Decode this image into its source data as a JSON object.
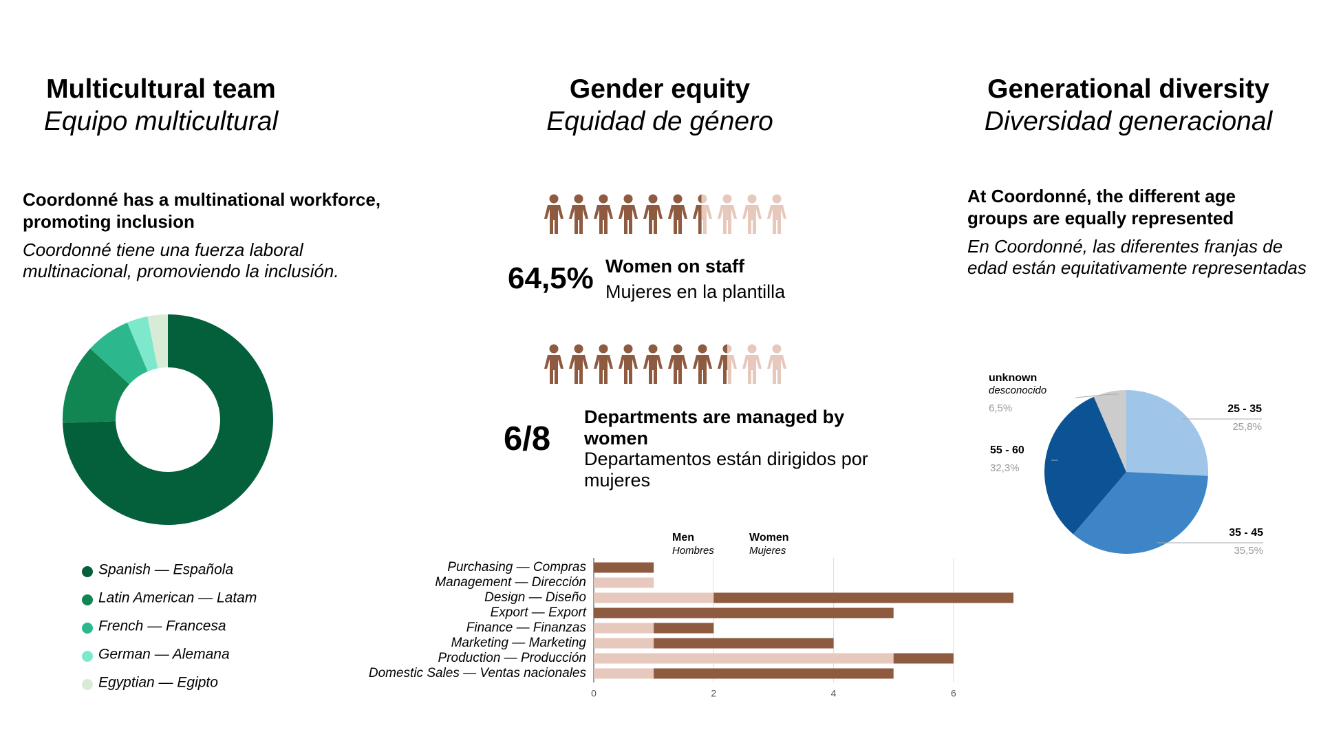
{
  "columns": [
    {
      "title": "Multicultural team",
      "subtitle": "Equipo multicultural",
      "lead": "Coordonné has a multinational workforce, promoting inclusion",
      "lead_es": "Coordonné tiene una fuerza laboral multinacional, promoviendo la inclusión."
    },
    {
      "title": "Gender equity",
      "subtitle": "Equidad de género"
    },
    {
      "title": "Generational diversity",
      "subtitle": "Diversidad generacional",
      "lead": "At Coordonné, the different age groups are equally represented",
      "lead_es": "En Coordonné, las diferentes franjas de edad están equitativamente representadas"
    }
  ],
  "stats": [
    {
      "value": 64.5,
      "label": "64,5%",
      "caption": "Women on staff",
      "caption_es": "Mujeres en la plantilla"
    },
    {
      "value": 6,
      "of": 8,
      "label": "6/8",
      "caption": "Departments are managed by women",
      "caption_es": "Departamentos están dirigidos por mujeres"
    }
  ],
  "chart_data": [
    {
      "type": "donut",
      "categories": [
        "Spanish — Española",
        "Latin American — Latam",
        "French — Francesa",
        "German — Alemana",
        "Egyptian — Egipto"
      ],
      "values": [
        74.5,
        12.3,
        6.9,
        3.2,
        3.1
      ],
      "colors": [
        "#045f3b",
        "#118552",
        "#2db78d",
        "#7ee8cd",
        "#d8ebd6"
      ]
    },
    {
      "type": "bar",
      "orientation": "horizontal",
      "stacked": true,
      "categories": [
        "Purchasing — Compras",
        "Management — Dirección",
        "Design — Diseño",
        "Export — Export",
        "Finance — Finanzas",
        "Marketing — Marketing",
        "Production — Producción",
        "Domestic Sales — Ventas nacionales"
      ],
      "series": [
        {
          "name": "Men",
          "name_es": "Hombres",
          "color": "#e6c8bd",
          "values": [
            0,
            1,
            2,
            0,
            1,
            1,
            5,
            1
          ]
        },
        {
          "name": "Women",
          "name_es": "Mujeres",
          "color": "#8e5a40",
          "values": [
            1,
            0,
            5,
            5,
            1,
            3,
            1,
            4
          ]
        }
      ],
      "xlim": [
        0,
        7
      ],
      "xticks": [
        0,
        2,
        4,
        6
      ],
      "grid": true
    },
    {
      "type": "pie",
      "categories": [
        "25 - 35",
        "35 - 45",
        "55 - 60",
        "unknown"
      ],
      "category_notes": [
        null,
        null,
        null,
        "desconocido"
      ],
      "values": [
        25.8,
        35.5,
        32.3,
        6.5
      ],
      "value_labels": [
        "25,8%",
        "35,5%",
        "32,3%",
        "6,5%"
      ],
      "colors": [
        "#9fc5e8",
        "#3d85c6",
        "#0b5394",
        "#cccccc"
      ]
    }
  ]
}
